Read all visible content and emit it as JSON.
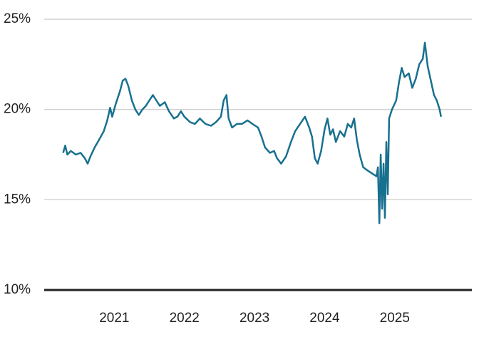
{
  "chart_data": {
    "type": "line",
    "x": [
      2020.27,
      2020.3,
      2020.33,
      2020.38,
      2020.45,
      2020.52,
      2020.58,
      2020.62,
      2020.66,
      2020.72,
      2020.78,
      2020.85,
      2020.9,
      2020.94,
      2020.97,
      2021.02,
      2021.08,
      2021.12,
      2021.16,
      2021.2,
      2021.25,
      2021.3,
      2021.35,
      2021.4,
      2021.45,
      2021.5,
      2021.55,
      2021.6,
      2021.65,
      2021.72,
      2021.78,
      2021.85,
      2021.9,
      2021.95,
      2022.0,
      2022.08,
      2022.15,
      2022.22,
      2022.3,
      2022.38,
      2022.45,
      2022.52,
      2022.56,
      2022.6,
      2022.63,
      2022.68,
      2022.75,
      2022.82,
      2022.9,
      2022.97,
      2023.05,
      2023.1,
      2023.15,
      2023.22,
      2023.28,
      2023.32,
      2023.38,
      2023.45,
      2023.52,
      2023.58,
      2023.65,
      2023.72,
      2023.78,
      2023.82,
      2023.86,
      2023.9,
      2023.95,
      2024.0,
      2024.04,
      2024.08,
      2024.12,
      2024.16,
      2024.22,
      2024.28,
      2024.33,
      2024.38,
      2024.42,
      2024.46,
      2024.5,
      2024.55,
      2024.62,
      2024.7,
      2024.74,
      2024.76,
      2024.78,
      2024.8,
      2024.82,
      2024.84,
      2024.86,
      2024.88,
      2024.9,
      2024.92,
      2024.96,
      2025.02,
      2025.06,
      2025.1,
      2025.14,
      2025.2,
      2025.25,
      2025.3,
      2025.35,
      2025.4,
      2025.43,
      2025.47,
      2025.52,
      2025.56,
      2025.6,
      2025.64,
      2025.66
    ],
    "series": [
      {
        "color": "#18708f",
        "values": [
          17.6,
          18.0,
          17.5,
          17.7,
          17.5,
          17.6,
          17.3,
          17.0,
          17.4,
          17.9,
          18.3,
          18.8,
          19.4,
          20.1,
          19.6,
          20.3,
          21.0,
          21.6,
          21.7,
          21.3,
          20.5,
          20.0,
          19.7,
          20.0,
          20.2,
          20.5,
          20.8,
          20.5,
          20.2,
          20.4,
          19.9,
          19.5,
          19.6,
          19.9,
          19.6,
          19.3,
          19.2,
          19.5,
          19.2,
          19.1,
          19.3,
          19.6,
          20.5,
          20.8,
          19.5,
          19.0,
          19.2,
          19.2,
          19.4,
          19.2,
          19.0,
          18.5,
          17.9,
          17.6,
          17.7,
          17.3,
          17.0,
          17.4,
          18.2,
          18.8,
          19.2,
          19.6,
          19.0,
          18.5,
          17.3,
          17.0,
          17.7,
          18.9,
          19.5,
          18.6,
          18.9,
          18.2,
          18.8,
          18.5,
          19.2,
          19.0,
          19.5,
          18.3,
          17.5,
          16.8,
          16.6,
          16.4,
          16.3,
          16.8,
          13.7,
          17.5,
          14.5,
          17.0,
          14.0,
          18.2,
          15.3,
          19.5,
          20.0,
          20.5,
          21.5,
          22.3,
          21.8,
          22.0,
          21.2,
          21.7,
          22.5,
          22.8,
          23.7,
          22.4,
          21.5,
          20.8,
          20.5,
          20.0,
          19.6
        ]
      }
    ],
    "xlim": [
      2020,
      2026.1
    ],
    "xticks": [
      2021,
      2022,
      2023,
      2024,
      2025
    ],
    "ylim": [
      10,
      25
    ],
    "yticks": [
      {
        "value": 10,
        "label": "10%"
      },
      {
        "value": 15,
        "label": "15%"
      },
      {
        "value": 20,
        "label": "20%"
      },
      {
        "value": 25,
        "label": "25%"
      }
    ],
    "grid": true
  }
}
